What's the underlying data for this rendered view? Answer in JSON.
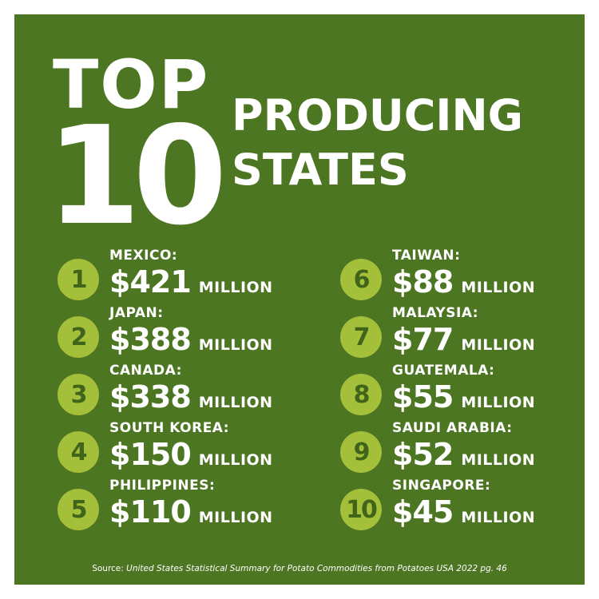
{
  "header": {
    "top": "TOP",
    "number": "10",
    "line1": "PRODUCING",
    "line2": "STATES"
  },
  "items": [
    {
      "rank": "1",
      "name": "MEXICO:",
      "amount": "$421",
      "unit": "MILLION"
    },
    {
      "rank": "2",
      "name": "JAPAN:",
      "amount": "$388",
      "unit": "MILLION"
    },
    {
      "rank": "3",
      "name": "CANADA:",
      "amount": "$338",
      "unit": "MILLION"
    },
    {
      "rank": "4",
      "name": "SOUTH KOREA:",
      "amount": "$150",
      "unit": "MILLION"
    },
    {
      "rank": "5",
      "name": "PHILIPPINES:",
      "amount": "$110",
      "unit": "MILLION"
    },
    {
      "rank": "6",
      "name": "TAIWAN:",
      "amount": "$88",
      "unit": "MILLION"
    },
    {
      "rank": "7",
      "name": "MALAYSIA:",
      "amount": "$77",
      "unit": "MILLION"
    },
    {
      "rank": "8",
      "name": "GUATEMALA:",
      "amount": "$55",
      "unit": "MILLION"
    },
    {
      "rank": "9",
      "name": "SAUDI ARABIA:",
      "amount": "$52",
      "unit": "MILLION"
    },
    {
      "rank": "10",
      "name": "SINGAPORE:",
      "amount": "$45",
      "unit": "MILLION"
    }
  ],
  "source": {
    "label": "Source:",
    "text": "United States Statistical Summary for Potato Commodities from Potatoes USA 2022 pg. 46"
  }
}
